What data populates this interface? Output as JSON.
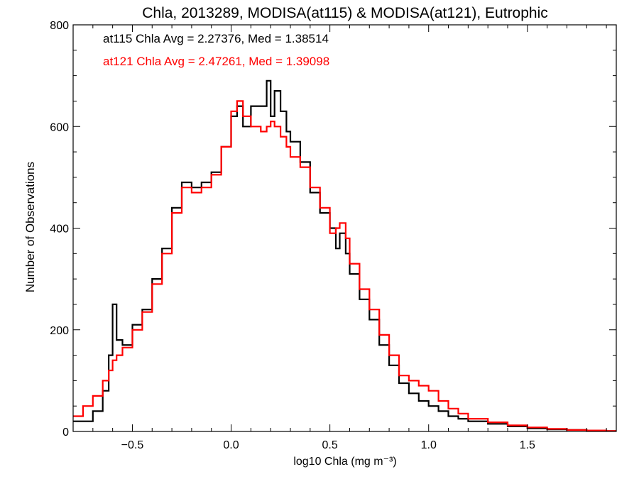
{
  "chart_data": {
    "type": "line",
    "title": "Chla, 2013289, MODISA(at115) & MODISA(at121), Eutrophic",
    "xlabel": "log10 Chla (mg m⁻³)",
    "ylabel": "Number of Observations",
    "xlim": [
      -0.8,
      1.95
    ],
    "ylim": [
      0,
      800
    ],
    "xticks": [
      -0.5,
      0.0,
      0.5,
      1.0,
      1.5
    ],
    "xtick_labels": [
      "−0.5",
      "0.0",
      "0.5",
      "1.0",
      "1.5"
    ],
    "yticks": [
      0,
      200,
      400,
      600,
      800
    ],
    "ytick_labels": [
      "0",
      "200",
      "400",
      "600",
      "800"
    ],
    "grid": false,
    "annotations": [
      {
        "text": "at115 Chla Avg = 2.27376, Med = 1.38514",
        "color": "#000000"
      },
      {
        "text": "at121 Chla Avg = 2.47261, Med = 1.39098",
        "color": "#ff0000"
      }
    ],
    "series": [
      {
        "color": "#000000",
        "x": [
          -0.8,
          -0.75,
          -0.7,
          -0.65,
          -0.62,
          -0.6,
          -0.58,
          -0.55,
          -0.5,
          -0.45,
          -0.4,
          -0.35,
          -0.3,
          -0.25,
          -0.2,
          -0.15,
          -0.1,
          -0.05,
          0.0,
          0.03,
          0.06,
          0.1,
          0.15,
          0.18,
          0.2,
          0.22,
          0.25,
          0.28,
          0.3,
          0.35,
          0.4,
          0.45,
          0.5,
          0.53,
          0.55,
          0.58,
          0.6,
          0.65,
          0.7,
          0.75,
          0.8,
          0.85,
          0.9,
          0.95,
          1.0,
          1.05,
          1.1,
          1.15,
          1.2,
          1.3,
          1.4,
          1.5,
          1.6,
          1.7,
          1.8,
          1.9
        ],
        "y": [
          20,
          20,
          40,
          80,
          150,
          250,
          180,
          170,
          210,
          240,
          300,
          360,
          440,
          490,
          480,
          490,
          510,
          560,
          620,
          640,
          600,
          640,
          640,
          690,
          620,
          670,
          630,
          590,
          570,
          530,
          470,
          430,
          400,
          360,
          390,
          350,
          310,
          260,
          220,
          170,
          130,
          95,
          75,
          60,
          50,
          40,
          30,
          25,
          20,
          15,
          10,
          6,
          4,
          3,
          2,
          1
        ]
      },
      {
        "color": "#ff0000",
        "x": [
          -0.8,
          -0.75,
          -0.7,
          -0.65,
          -0.62,
          -0.6,
          -0.58,
          -0.55,
          -0.5,
          -0.45,
          -0.4,
          -0.35,
          -0.3,
          -0.25,
          -0.2,
          -0.15,
          -0.1,
          -0.05,
          0.0,
          0.03,
          0.06,
          0.1,
          0.15,
          0.18,
          0.2,
          0.22,
          0.25,
          0.28,
          0.3,
          0.35,
          0.4,
          0.45,
          0.5,
          0.53,
          0.55,
          0.58,
          0.6,
          0.65,
          0.7,
          0.75,
          0.8,
          0.85,
          0.9,
          0.95,
          1.0,
          1.05,
          1.1,
          1.15,
          1.2,
          1.3,
          1.4,
          1.5,
          1.6,
          1.7,
          1.8,
          1.9
        ],
        "y": [
          30,
          50,
          70,
          100,
          120,
          140,
          150,
          165,
          200,
          235,
          290,
          350,
          430,
          480,
          470,
          480,
          505,
          560,
          630,
          650,
          620,
          600,
          590,
          600,
          610,
          600,
          580,
          560,
          540,
          520,
          480,
          440,
          390,
          400,
          410,
          380,
          330,
          280,
          240,
          190,
          150,
          110,
          100,
          90,
          80,
          60,
          45,
          35,
          25,
          18,
          12,
          8,
          5,
          3,
          2,
          1
        ]
      }
    ]
  }
}
